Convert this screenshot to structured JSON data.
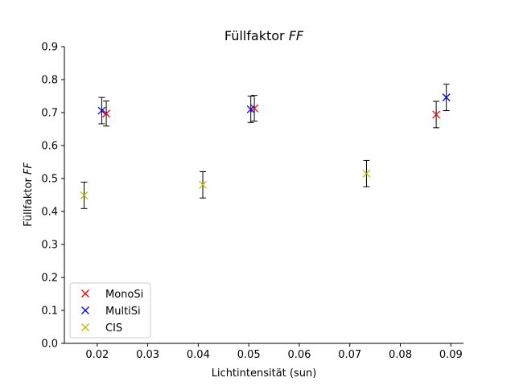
{
  "chart_data": {
    "type": "scatter",
    "title": "Füllfaktor",
    "title_symbol": "FF",
    "xlabel": "Lichtintensität (sun)",
    "ylabel": "Füllfaktor",
    "ylabel_symbol": "FF",
    "xlim": [
      0.0135,
      0.0925
    ],
    "ylim": [
      0.0,
      0.9
    ],
    "xticks": [
      0.02,
      0.03,
      0.04,
      0.05,
      0.06,
      0.07,
      0.08,
      0.09
    ],
    "xtick_labels": [
      "0.02",
      "0.03",
      "0.04",
      "0.05",
      "0.06",
      "0.07",
      "0.08",
      "0.09"
    ],
    "yticks": [
      0.0,
      0.1,
      0.2,
      0.3,
      0.4,
      0.5,
      0.6,
      0.7,
      0.8,
      0.9
    ],
    "ytick_labels": [
      "0.0",
      "0.1",
      "0.2",
      "0.3",
      "0.4",
      "0.5",
      "0.6",
      "0.7",
      "0.8",
      "0.9"
    ],
    "grid": false,
    "legend_position": "lower-left",
    "marker": "x",
    "series": [
      {
        "name": "MonoSi",
        "color": "#ff0000",
        "points": [
          {
            "x": 0.0218,
            "y": 0.697,
            "err": 0.038
          },
          {
            "x": 0.0511,
            "y": 0.713,
            "err": 0.039
          },
          {
            "x": 0.0871,
            "y": 0.694,
            "err": 0.04
          }
        ]
      },
      {
        "name": "MultiSi",
        "color": "#0000ff",
        "points": [
          {
            "x": 0.0209,
            "y": 0.706,
            "err": 0.04
          },
          {
            "x": 0.0504,
            "y": 0.71,
            "err": 0.04
          },
          {
            "x": 0.0891,
            "y": 0.746,
            "err": 0.04
          }
        ]
      },
      {
        "name": "CIS",
        "color": "#bfbf00",
        "points": [
          {
            "x": 0.0174,
            "y": 0.449,
            "err": 0.04
          },
          {
            "x": 0.0409,
            "y": 0.481,
            "err": 0.04
          },
          {
            "x": 0.0733,
            "y": 0.515,
            "err": 0.04
          }
        ]
      }
    ]
  }
}
